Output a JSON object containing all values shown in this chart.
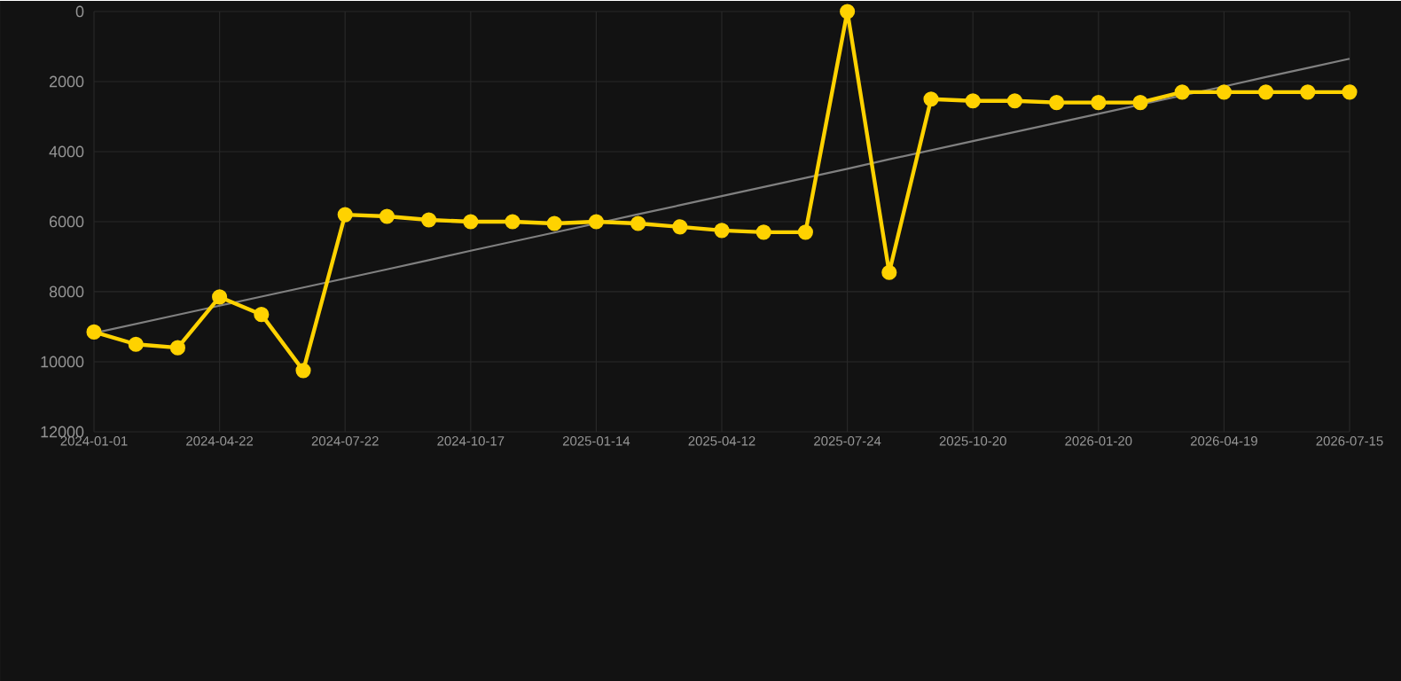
{
  "chart_data": {
    "type": "line",
    "categories": [
      "2024-01-01",
      null,
      null,
      "2024-04-22",
      null,
      null,
      "2024-07-22",
      null,
      null,
      "2024-10-17",
      null,
      null,
      "2025-01-14",
      null,
      null,
      "2025-04-12",
      null,
      null,
      "2025-07-24",
      null,
      null,
      "2025-10-20",
      null,
      null,
      "2026-01-20",
      null,
      null,
      "2026-04-19",
      null,
      null,
      "2026-07-15"
    ],
    "series": [
      {
        "color": "#ffd200",
        "marker": "circle",
        "values": [
          9150,
          9500,
          9600,
          8150,
          8650,
          10250,
          5800,
          5850,
          5950,
          6000,
          6000,
          6050,
          6000,
          6050,
          6150,
          6250,
          6300,
          6300,
          0,
          7450,
          2500,
          2550,
          2550,
          2600,
          2600,
          2600,
          2300,
          2300,
          2300,
          2300,
          2300
        ]
      },
      {
        "type": "line",
        "color": "#808080",
        "marker": "none",
        "values": [
          9180,
          8920,
          8660,
          8400,
          8140,
          7880,
          7620,
          7360,
          7100,
          6830,
          6570,
          6310,
          6050,
          5790,
          5530,
          5270,
          5010,
          4750,
          4490,
          4220,
          3960,
          3700,
          3440,
          3180,
          2920,
          2660,
          2400,
          2140,
          1870,
          1610,
          1350
        ]
      }
    ],
    "ylim": [
      12000,
      0
    ],
    "yticks": [
      0,
      2000,
      4000,
      6000,
      8000,
      10000,
      12000
    ],
    "grid": true
  }
}
